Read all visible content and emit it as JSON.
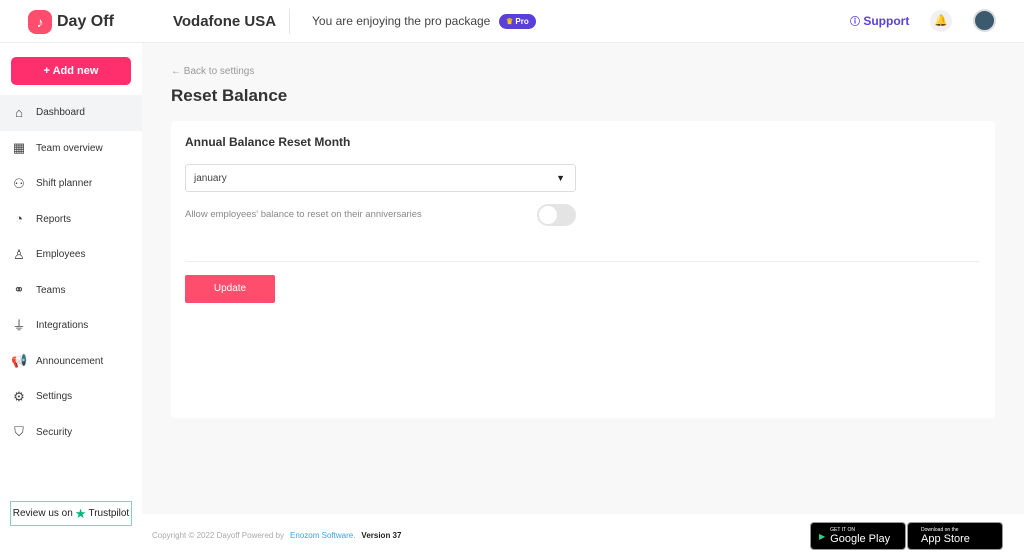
{
  "header": {
    "app_name": "Day Off",
    "company": "Vodafone USA",
    "package_text": "You are enjoying the pro package",
    "badge": "Pro",
    "support": "Support"
  },
  "sidebar": {
    "add_new": "Add new",
    "items": [
      {
        "label": "Dashboard",
        "icon": "home-icon"
      },
      {
        "label": "Team overview",
        "icon": "calendar-icon"
      },
      {
        "label": "Shift planner",
        "icon": "user-clock-icon"
      },
      {
        "label": "Reports",
        "icon": "pie-chart-icon"
      },
      {
        "label": "Employees",
        "icon": "user-icon"
      },
      {
        "label": "Teams",
        "icon": "team-icon"
      },
      {
        "label": "Integrations",
        "icon": "plug-icon"
      },
      {
        "label": "Announcement",
        "icon": "megaphone-icon"
      },
      {
        "label": "Settings",
        "icon": "gear-icon"
      },
      {
        "label": "Security",
        "icon": "shield-icon"
      }
    ],
    "trustpilot_prefix": "Review us on",
    "trustpilot": "Trustpilot"
  },
  "main": {
    "back": "← Back to settings",
    "title": "Reset Balance",
    "section_title": "Annual Balance Reset Month",
    "month_value": "january",
    "anniversary_label": "Allow employees' balance to reset on their anniversaries",
    "anniversary_enabled": false,
    "update": "Update"
  },
  "footer": {
    "copyright": "Copyright © 2022 Dayoff  Powered by",
    "company_link": "Enozom Software.",
    "version": "Version  37",
    "google_small": "GET IT ON",
    "google_big": "Google Play",
    "apple_small": "Download on the",
    "apple_big": "App Store"
  },
  "colors": {
    "accent": "#ff2f6e",
    "pro": "#5a3fd8"
  }
}
